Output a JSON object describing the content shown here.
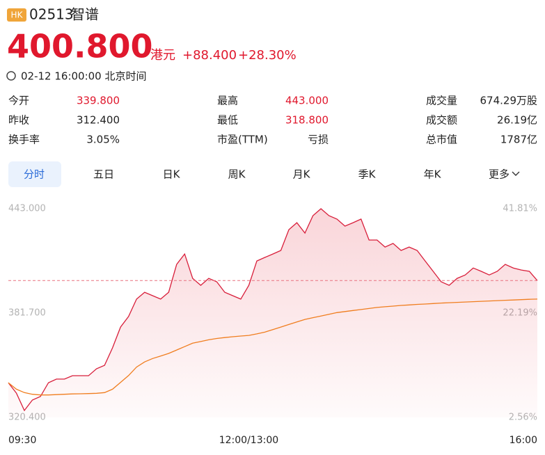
{
  "header": {
    "market": "HK",
    "code": "02513",
    "name": "智谱",
    "price": "400.800",
    "currency": "港元",
    "change": "+88.400",
    "change_pct": "+28.30%",
    "time": "02-12 16:00:00 北京时间"
  },
  "stats": [
    [
      {
        "label": "今开",
        "value": "339.800"
      },
      {
        "label": "最高",
        "value": "443.000"
      },
      {
        "label": "成交量",
        "value": "674.29万股"
      }
    ],
    [
      {
        "label": "昨收",
        "value": "312.400"
      },
      {
        "label": "最低",
        "value": "318.800"
      },
      {
        "label": "成交额",
        "value": "26.19亿"
      }
    ],
    [
      {
        "label": "换手率",
        "value": "3.05%"
      },
      {
        "label": "市盈(TTM)",
        "value": "亏损"
      },
      {
        "label": "总市值",
        "value": "1787亿"
      }
    ]
  ],
  "tabs": [
    "分时",
    "五日",
    "日K",
    "周K",
    "月K",
    "季K",
    "年K",
    "更多"
  ],
  "chart_data": {
    "type": "line",
    "categories": [
      "09:30",
      null,
      null,
      null,
      null,
      null,
      null,
      null,
      null,
      null,
      null,
      null,
      null,
      null,
      null,
      null,
      null,
      null,
      null,
      null,
      null,
      null,
      null,
      null,
      null,
      null,
      null,
      null,
      null,
      null,
      "12:00/13:00",
      null,
      null,
      null,
      null,
      null,
      null,
      null,
      null,
      null,
      null,
      null,
      null,
      null,
      null,
      null,
      null,
      null,
      null,
      null,
      null,
      null,
      null,
      null,
      null,
      null,
      null,
      null,
      null,
      null,
      null,
      null,
      null,
      null,
      null,
      null,
      "16:00"
    ],
    "series": [
      {
        "color": "#d81e3a",
        "values": [
          340.8,
          334.7,
          324.5,
          330.6,
          332.7,
          340.8,
          342.9,
          342.9,
          344.9,
          344.9,
          344.9,
          349,
          351,
          361.3,
          373.5,
          379.7,
          389.9,
          393.9,
          391.9,
          389.9,
          393.9,
          410.3,
          416.4,
          402.1,
          398,
          402.1,
          400.1,
          393.9,
          391.9,
          389.9,
          398,
          412.3,
          414.4,
          416.4,
          418.5,
          430.7,
          434.8,
          428.7,
          438.9,
          443,
          438.9,
          436.9,
          432.8,
          434.8,
          436.9,
          424.6,
          424.6,
          420.5,
          422.6,
          418.5,
          420.5,
          418.5,
          412.3,
          406.2,
          400.1,
          398,
          402.1,
          404.1,
          408.2,
          406.2,
          404.1,
          406.2,
          410.3,
          408.2,
          407,
          406.2,
          400.8
        ]
      },
      {
        "color": "#f07d1e",
        "values": [
          340.8,
          337,
          335,
          334,
          333.6,
          333.6,
          333.8,
          334,
          334.2,
          334.3,
          334.4,
          334.6,
          335,
          337,
          341,
          345,
          350,
          353,
          355,
          356.5,
          358,
          360,
          362,
          364,
          365,
          366,
          366.8,
          367.3,
          367.8,
          368.2,
          368.6,
          369.5,
          370.5,
          372,
          373.5,
          375,
          376.5,
          378,
          379,
          380,
          381,
          382,
          382.6,
          383.2,
          383.8,
          384.4,
          385,
          385.4,
          385.8,
          386.2,
          386.5,
          386.8,
          387,
          387.3,
          387.6,
          387.8,
          388,
          388.2,
          388.4,
          388.6,
          388.8,
          389,
          389.2,
          389.4,
          389.6,
          389.8,
          389.9
        ]
      }
    ],
    "reference_line": 400.8,
    "ylim": [
      320.4,
      443
    ],
    "yticks": [
      {
        "value": 443,
        "label": "443.000"
      },
      {
        "value": 381.7,
        "label": "381.700"
      },
      {
        "value": 320.4,
        "label": "320.400"
      }
    ],
    "y2lim": [
      2.56,
      41.81
    ],
    "y2ticks": [
      {
        "value": 41.81,
        "label": "41.81%"
      },
      {
        "value": 22.19,
        "label": "22.19%"
      },
      {
        "value": 2.56,
        "label": "2.56%"
      }
    ],
    "grid": false
  }
}
